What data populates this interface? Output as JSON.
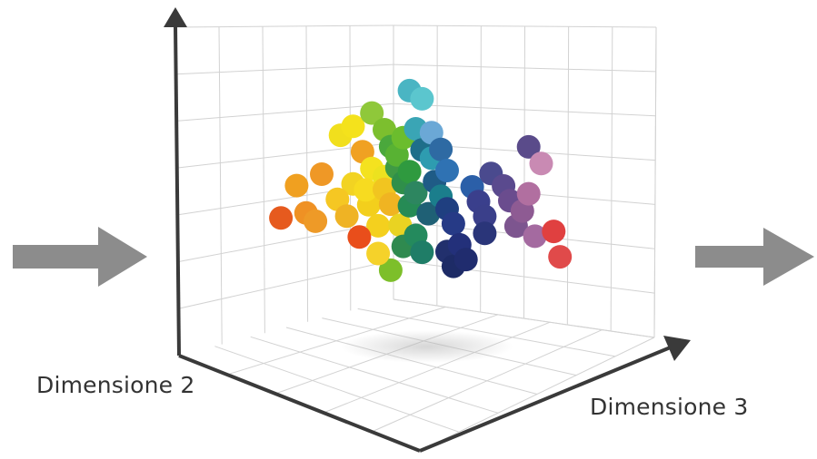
{
  "chart_data": {
    "type": "scatter3d",
    "xlabel": "Dimensione 2",
    "zlabel": "Dimensione 3",
    "ylabel": "",
    "grid": true,
    "legend": "none",
    "flow_arrows": [
      "left",
      "right"
    ],
    "colors": {
      "arrow": "#8c8c8c",
      "axis": "#3a3a3a",
      "grid": "#cfcfcf",
      "shadow": "#bdbdbd"
    },
    "points": [
      {
        "x": 0.07,
        "y": 0.4,
        "z": 0.1,
        "color": "#e65a1e"
      },
      {
        "x": 0.12,
        "y": 0.55,
        "z": 0.12,
        "color": "#f0a020"
      },
      {
        "x": 0.2,
        "y": 0.6,
        "z": 0.15,
        "color": "#ef9826"
      },
      {
        "x": 0.15,
        "y": 0.42,
        "z": 0.2,
        "color": "#ef9124"
      },
      {
        "x": 0.18,
        "y": 0.38,
        "z": 0.28,
        "color": "#ee9a27"
      },
      {
        "x": 0.25,
        "y": 0.48,
        "z": 0.22,
        "color": "#f5c723"
      },
      {
        "x": 0.3,
        "y": 0.55,
        "z": 0.2,
        "color": "#f2d322"
      },
      {
        "x": 0.28,
        "y": 0.4,
        "z": 0.3,
        "color": "#efb324"
      },
      {
        "x": 0.35,
        "y": 0.45,
        "z": 0.25,
        "color": "#f3cf1c"
      },
      {
        "x": 0.32,
        "y": 0.3,
        "z": 0.35,
        "color": "#e94e1b"
      },
      {
        "x": 0.38,
        "y": 0.35,
        "z": 0.32,
        "color": "#f4d01e"
      },
      {
        "x": 0.26,
        "y": 0.78,
        "z": 0.15,
        "color": "#f1df1d"
      },
      {
        "x": 0.3,
        "y": 0.82,
        "z": 0.2,
        "color": "#f4e21c"
      },
      {
        "x": 0.33,
        "y": 0.7,
        "z": 0.28,
        "color": "#f0a122"
      },
      {
        "x": 0.36,
        "y": 0.62,
        "z": 0.3,
        "color": "#f4e21f"
      },
      {
        "x": 0.4,
        "y": 0.52,
        "z": 0.35,
        "color": "#f1c520"
      },
      {
        "x": 0.42,
        "y": 0.45,
        "z": 0.38,
        "color": "#f0b422"
      },
      {
        "x": 0.45,
        "y": 0.35,
        "z": 0.4,
        "color": "#e9d322"
      },
      {
        "x": 0.36,
        "y": 0.88,
        "z": 0.35,
        "color": "#8fc83a"
      },
      {
        "x": 0.4,
        "y": 0.8,
        "z": 0.35,
        "color": "#7cbf2e"
      },
      {
        "x": 0.42,
        "y": 0.72,
        "z": 0.38,
        "color": "#4aa83c"
      },
      {
        "x": 0.44,
        "y": 0.62,
        "z": 0.4,
        "color": "#3f9a44"
      },
      {
        "x": 0.46,
        "y": 0.55,
        "z": 0.42,
        "color": "#2f8f4a"
      },
      {
        "x": 0.48,
        "y": 0.44,
        "z": 0.45,
        "color": "#268b55"
      },
      {
        "x": 0.5,
        "y": 0.3,
        "z": 0.48,
        "color": "#248a5d"
      },
      {
        "x": 0.42,
        "y": 0.14,
        "z": 0.3,
        "color": "#7dbf2a"
      },
      {
        "x": 0.48,
        "y": 0.98,
        "z": 0.5,
        "color": "#4ab5c3"
      },
      {
        "x": 0.52,
        "y": 0.94,
        "z": 0.55,
        "color": "#5bc6ce"
      },
      {
        "x": 0.5,
        "y": 0.8,
        "z": 0.48,
        "color": "#3aa5b5"
      },
      {
        "x": 0.55,
        "y": 0.78,
        "z": 0.58,
        "color": "#6ba8d6"
      },
      {
        "x": 0.52,
        "y": 0.7,
        "z": 0.52,
        "color": "#1e6e8a"
      },
      {
        "x": 0.55,
        "y": 0.66,
        "z": 0.55,
        "color": "#2e9cb0"
      },
      {
        "x": 0.58,
        "y": 0.7,
        "z": 0.62,
        "color": "#2e6aa3"
      },
      {
        "x": 0.6,
        "y": 0.6,
        "z": 0.62,
        "color": "#2f72b3"
      },
      {
        "x": 0.56,
        "y": 0.55,
        "z": 0.58,
        "color": "#1f5b86"
      },
      {
        "x": 0.58,
        "y": 0.48,
        "z": 0.6,
        "color": "#1b7e8c"
      },
      {
        "x": 0.6,
        "y": 0.42,
        "z": 0.62,
        "color": "#1f3f80"
      },
      {
        "x": 0.62,
        "y": 0.35,
        "z": 0.65,
        "color": "#263a86"
      },
      {
        "x": 0.64,
        "y": 0.25,
        "z": 0.68,
        "color": "#23307a"
      },
      {
        "x": 0.66,
        "y": 0.18,
        "z": 0.7,
        "color": "#202c6e"
      },
      {
        "x": 0.68,
        "y": 0.52,
        "z": 0.7,
        "color": "#2b5fa8"
      },
      {
        "x": 0.7,
        "y": 0.45,
        "z": 0.72,
        "color": "#3a3f8c"
      },
      {
        "x": 0.72,
        "y": 0.38,
        "z": 0.74,
        "color": "#3a3f8a"
      },
      {
        "x": 0.72,
        "y": 0.3,
        "z": 0.74,
        "color": "#2a3579"
      },
      {
        "x": 0.74,
        "y": 0.58,
        "z": 0.78,
        "color": "#4a4a8e"
      },
      {
        "x": 0.78,
        "y": 0.52,
        "z": 0.8,
        "color": "#5a4a8e"
      },
      {
        "x": 0.8,
        "y": 0.45,
        "z": 0.82,
        "color": "#6a4c8e"
      },
      {
        "x": 0.84,
        "y": 0.4,
        "z": 0.86,
        "color": "#8e5b93"
      },
      {
        "x": 0.86,
        "y": 0.48,
        "z": 0.88,
        "color": "#b16fa0"
      },
      {
        "x": 0.9,
        "y": 0.62,
        "z": 0.92,
        "color": "#c98ab3"
      },
      {
        "x": 0.86,
        "y": 0.7,
        "z": 0.88,
        "color": "#5a4b8a"
      },
      {
        "x": 0.88,
        "y": 0.28,
        "z": 0.9,
        "color": "#a46aa0"
      },
      {
        "x": 0.94,
        "y": 0.3,
        "z": 0.96,
        "color": "#e04040"
      },
      {
        "x": 0.96,
        "y": 0.18,
        "z": 0.98,
        "color": "#e04a4a"
      },
      {
        "x": 0.82,
        "y": 0.33,
        "z": 0.84,
        "color": "#7d558f"
      },
      {
        "x": 0.46,
        "y": 0.25,
        "z": 0.44,
        "color": "#2f8a4f"
      },
      {
        "x": 0.52,
        "y": 0.22,
        "z": 0.52,
        "color": "#1f7d67"
      },
      {
        "x": 0.54,
        "y": 0.4,
        "z": 0.54,
        "color": "#1f6075"
      },
      {
        "x": 0.6,
        "y": 0.22,
        "z": 0.6,
        "color": "#22306d"
      },
      {
        "x": 0.62,
        "y": 0.15,
        "z": 0.62,
        "color": "#1d2b66"
      },
      {
        "x": 0.38,
        "y": 0.22,
        "z": 0.3,
        "color": "#f5d22a"
      },
      {
        "x": 0.4,
        "y": 0.58,
        "z": 0.32,
        "color": "#ece21f"
      },
      {
        "x": 0.34,
        "y": 0.52,
        "z": 0.3,
        "color": "#f7db20"
      },
      {
        "x": 0.48,
        "y": 0.6,
        "z": 0.46,
        "color": "#2f9a3f"
      },
      {
        "x": 0.44,
        "y": 0.68,
        "z": 0.4,
        "color": "#58b233"
      },
      {
        "x": 0.46,
        "y": 0.76,
        "z": 0.42,
        "color": "#6bbd2d"
      },
      {
        "x": 0.5,
        "y": 0.5,
        "z": 0.5,
        "color": "#2d8660"
      }
    ]
  }
}
